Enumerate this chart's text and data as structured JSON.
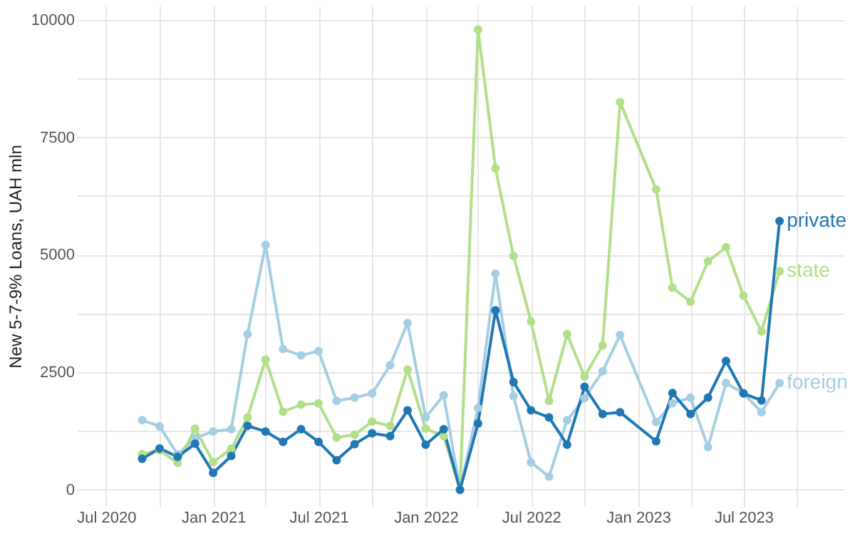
{
  "chart_data": {
    "type": "line",
    "ylabel": "New 5-7-9% Loans, UAH mln",
    "x": [
      "2020-09",
      "2020-10",
      "2020-11",
      "2020-12",
      "2021-01",
      "2021-02",
      "2021-03",
      "2021-04",
      "2021-05",
      "2021-06",
      "2021-07",
      "2021-08",
      "2021-09",
      "2021-10",
      "2021-11",
      "2021-12",
      "2022-01",
      "2022-02",
      "2022-03",
      "2022-04",
      "2022-05",
      "2022-06",
      "2022-07",
      "2022-08",
      "2022-09",
      "2022-10",
      "2022-11",
      "2022-12",
      "2023-02",
      "2023-03",
      "2023-04",
      "2023-05",
      "2023-06",
      "2023-07",
      "2023-08",
      "2023-09"
    ],
    "series": [
      {
        "name": "private",
        "color": "#1f78b4",
        "values": [
          660,
          880,
          700,
          980,
          360,
          720,
          1360,
          1240,
          1020,
          1290,
          1020,
          630,
          970,
          1200,
          1140,
          1690,
          960,
          1290,
          0,
          1410,
          3820,
          2290,
          1690,
          1540,
          960,
          2190,
          1610,
          1650,
          1030,
          2060,
          1610,
          1960,
          2740,
          2050,
          1900,
          5720
        ]
      },
      {
        "name": "state",
        "color": "#b2df8a",
        "values": [
          760,
          840,
          570,
          1300,
          590,
          870,
          1540,
          2770,
          1660,
          1810,
          1840,
          1110,
          1170,
          1450,
          1360,
          2560,
          1300,
          1140,
          0,
          9790,
          6840,
          4970,
          3580,
          1890,
          3310,
          2410,
          3070,
          8250,
          6390,
          4300,
          4000,
          4860,
          5160,
          4130,
          3370,
          4650
        ]
      },
      {
        "name": "foreign",
        "color": "#a6cee3",
        "values": [
          1480,
          1350,
          750,
          1100,
          1240,
          1290,
          3310,
          5210,
          2990,
          2860,
          2950,
          1890,
          1960,
          2050,
          2650,
          3550,
          1540,
          2010,
          0,
          1740,
          4600,
          1990,
          580,
          280,
          1480,
          1950,
          2520,
          3290,
          1440,
          1840,
          1960,
          910,
          2270,
          2050,
          1650,
          2270
        ]
      }
    ],
    "xlim": [
      "2020-05-12",
      "2023-12-20"
    ],
    "xticks": [
      {
        "value": "2020-07",
        "label": "Jul 2020"
      },
      {
        "value": "2020-10",
        "label": null
      },
      {
        "value": "2021-01",
        "label": "Jan 2021"
      },
      {
        "value": "2021-04",
        "label": null
      },
      {
        "value": "2021-07",
        "label": "Jul 2021"
      },
      {
        "value": "2021-10",
        "label": null
      },
      {
        "value": "2022-01",
        "label": "Jan 2022"
      },
      {
        "value": "2022-04",
        "label": null
      },
      {
        "value": "2022-07",
        "label": "Jul 2022"
      },
      {
        "value": "2022-10",
        "label": null
      },
      {
        "value": "2023-01",
        "label": "Jan 2023"
      },
      {
        "value": "2023-04",
        "label": null
      },
      {
        "value": "2023-07",
        "label": "Jul 2023"
      },
      {
        "value": "2023-10",
        "label": null
      }
    ],
    "ylim": [
      -350,
      10300
    ],
    "yticks": [
      0,
      {
        "value": 1250,
        "label": null
      },
      2500,
      {
        "value": 3750,
        "label": null
      },
      5000,
      {
        "value": 6250,
        "label": null
      },
      7500,
      {
        "value": 8750,
        "label": null
      },
      10000
    ],
    "grid": true,
    "legend": false,
    "marker": "circle",
    "line_style": "solid"
  }
}
